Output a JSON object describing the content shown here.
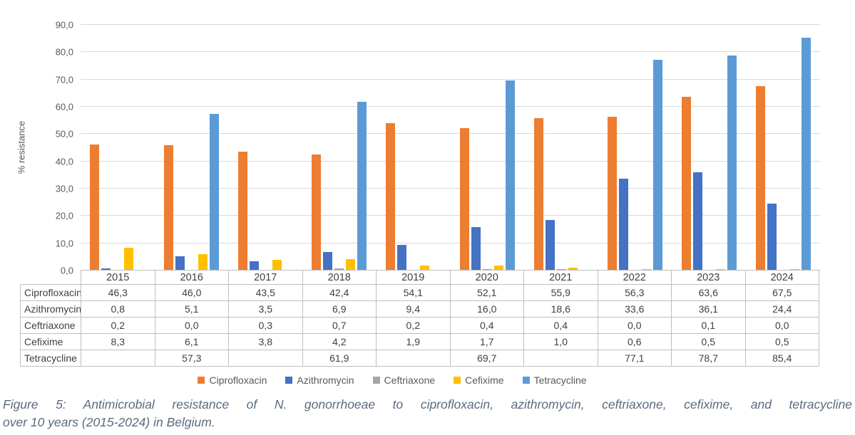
{
  "chart_data": {
    "type": "bar",
    "title": "",
    "xlabel": "",
    "ylabel": "% resistance",
    "ylim": [
      0,
      90
    ],
    "grid": true,
    "legend_position": "bottom",
    "categories": [
      "2015",
      "2016",
      "2017",
      "2018",
      "2019",
      "2020",
      "2021",
      "2022",
      "2023",
      "2024"
    ],
    "ytick_labels": [
      "0,0",
      "10,0",
      "20,0",
      "30,0",
      "40,0",
      "50,0",
      "60,0",
      "70,0",
      "80,0",
      "90,0"
    ],
    "series": [
      {
        "name": "Ciprofloxacin",
        "color": "#ED7D31",
        "values": [
          46.3,
          46.0,
          43.5,
          42.4,
          54.1,
          52.1,
          55.9,
          56.3,
          63.6,
          67.5
        ],
        "display": [
          "46,3",
          "46,0",
          "43,5",
          "42,4",
          "54,1",
          "52,1",
          "55,9",
          "56,3",
          "63,6",
          "67,5"
        ]
      },
      {
        "name": "Azithromycin",
        "color": "#4472C4",
        "values": [
          0.8,
          5.1,
          3.5,
          6.9,
          9.4,
          16.0,
          18.6,
          33.6,
          36.1,
          24.4
        ],
        "display": [
          "0,8",
          "5,1",
          "3,5",
          "6,9",
          "9,4",
          "16,0",
          "18,6",
          "33,6",
          "36,1",
          "24,4"
        ]
      },
      {
        "name": "Ceftriaxone",
        "color": "#A5A5A5",
        "values": [
          0.2,
          0.0,
          0.3,
          0.7,
          0.2,
          0.4,
          0.4,
          0.0,
          0.1,
          0.0
        ],
        "display": [
          "0,2",
          "0,0",
          "0,3",
          "0,7",
          "0,2",
          "0,4",
          "0,4",
          "0,0",
          "0,1",
          "0,0"
        ]
      },
      {
        "name": "Cefixime",
        "color": "#FFC000",
        "values": [
          8.3,
          6.1,
          3.8,
          4.2,
          1.9,
          1.7,
          1.0,
          0.6,
          0.5,
          0.5
        ],
        "display": [
          "8,3",
          "6,1",
          "3,8",
          "4,2",
          "1,9",
          "1,7",
          "1,0",
          "0,6",
          "0,5",
          "0,5"
        ]
      },
      {
        "name": "Tetracycline",
        "color": "#5B9BD5",
        "values": [
          null,
          57.3,
          null,
          61.9,
          null,
          69.7,
          null,
          77.1,
          78.7,
          85.4
        ],
        "display": [
          "",
          "57,3",
          "",
          "61,9",
          "",
          "69,7",
          "",
          "77,1",
          "78,7",
          "85,4"
        ]
      }
    ]
  },
  "caption": {
    "line1": "Figure 5: Antimicrobial resistance of N. gonorrhoeae to ciprofloxacin, azithromycin, ceftriaxone, cefixime, and tetracycline",
    "line2": "over 10 years (2015-2024) in Belgium."
  }
}
